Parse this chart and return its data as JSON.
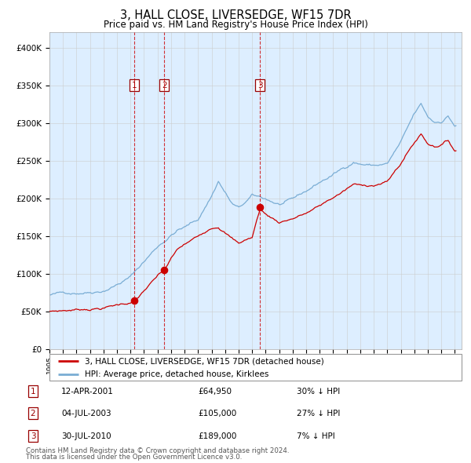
{
  "title": "3, HALL CLOSE, LIVERSEDGE, WF15 7DR",
  "subtitle": "Price paid vs. HM Land Registry's House Price Index (HPI)",
  "hpi_label": "HPI: Average price, detached house, Kirklees",
  "property_label": "3, HALL CLOSE, LIVERSEDGE, WF15 7DR (detached house)",
  "red_color": "#cc0000",
  "blue_color": "#7aadd4",
  "blue_fill": "#ddeeff",
  "bg_color": "#ffffff",
  "grid_color": "#cccccc",
  "sale_dates": [
    "12-APR-2001",
    "04-JUL-2003",
    "30-JUL-2010"
  ],
  "sale_prices": [
    64950,
    105000,
    189000
  ],
  "sale_pct": [
    "30% ↓ HPI",
    "27% ↓ HPI",
    "7% ↓ HPI"
  ],
  "sale_prices_str": [
    "£64,950",
    "£105,000",
    "£189,000"
  ],
  "vline_years": [
    2001.28,
    2003.5,
    2010.58
  ],
  "label_nums": [
    "1",
    "2",
    "3"
  ],
  "ylabel_ticks": [
    0,
    50000,
    100000,
    150000,
    200000,
    250000,
    300000,
    350000,
    400000
  ],
  "ylabel_labels": [
    "£0",
    "£50K",
    "£100K",
    "£150K",
    "£200K",
    "£250K",
    "£300K",
    "£350K",
    "£400K"
  ],
  "xmin": 1995.5,
  "xmax": 2025.5,
  "ymin": 0,
  "ymax": 420000,
  "footnote1": "Contains HM Land Registry data © Crown copyright and database right 2024.",
  "footnote2": "This data is licensed under the Open Government Licence v3.0."
}
